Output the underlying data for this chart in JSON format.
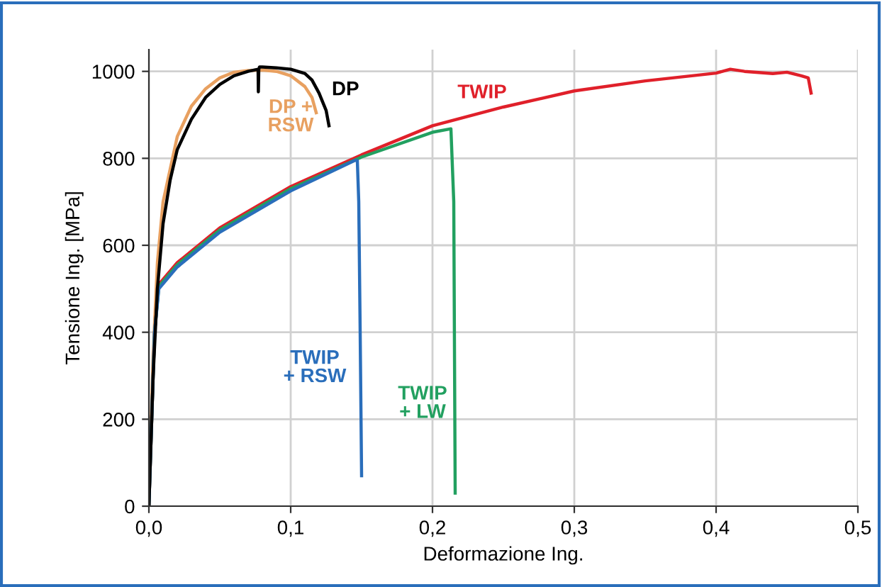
{
  "chart_data": {
    "type": "line",
    "xlabel": "Deformazione Ing.",
    "ylabel": "Tensione Ing. [MPa]",
    "xlim": [
      0,
      0.5
    ],
    "xticks": [
      {
        "value": 0,
        "label": "0,0"
      },
      {
        "value": 0.1,
        "label": "0,1"
      },
      {
        "value": 0.2,
        "label": "0,2"
      },
      {
        "value": 0.3,
        "label": "0,3"
      },
      {
        "value": 0.4,
        "label": "0,4"
      },
      {
        "value": 0.5,
        "label": "0,5"
      }
    ],
    "ylim": [
      0,
      1050
    ],
    "yticks": [
      0,
      200,
      400,
      600,
      800,
      1000
    ],
    "grid": true,
    "marker": "none",
    "line_style": "solid",
    "series": [
      {
        "name": "DP +\nRSW",
        "color": "#e8a060",
        "x": [
          0,
          0.003,
          0.006,
          0.01,
          0.02,
          0.03,
          0.04,
          0.05,
          0.06,
          0.07,
          0.08,
          0.09,
          0.1,
          0.11,
          0.115,
          0.118
        ],
        "values": [
          0,
          350,
          560,
          700,
          850,
          920,
          960,
          985,
          998,
          1002,
          1003,
          1000,
          990,
          965,
          940,
          905
        ]
      },
      {
        "name": "TWIP",
        "color": "#e0202a",
        "x": [
          0,
          0.004,
          0.007,
          0.02,
          0.05,
          0.1,
          0.15,
          0.2,
          0.25,
          0.3,
          0.35,
          0.4,
          0.41,
          0.42,
          0.44,
          0.45,
          0.46,
          0.465,
          0.467
        ],
        "values": [
          0,
          400,
          510,
          560,
          640,
          735,
          808,
          875,
          918,
          955,
          978,
          996,
          1005,
          1000,
          995,
          998,
          990,
          985,
          950
        ]
      },
      {
        "name": "TWIP\n+ LW",
        "color": "#22a060",
        "x": [
          0,
          0.004,
          0.007,
          0.02,
          0.05,
          0.1,
          0.15,
          0.2,
          0.213,
          0.215,
          0.216
        ],
        "values": [
          0,
          400,
          505,
          555,
          635,
          730,
          803,
          860,
          868,
          700,
          30
        ]
      },
      {
        "name": "TWIP\n+ RSW",
        "color": "#2a6ebb",
        "x": [
          0,
          0.004,
          0.007,
          0.02,
          0.05,
          0.1,
          0.145,
          0.147,
          0.148,
          0.149,
          0.15
        ],
        "values": [
          0,
          400,
          500,
          550,
          630,
          725,
          795,
          795,
          700,
          400,
          70
        ]
      },
      {
        "name": "DP",
        "color": "#000000",
        "x": [
          0,
          0.003,
          0.006,
          0.01,
          0.015,
          0.02,
          0.03,
          0.04,
          0.05,
          0.06,
          0.07,
          0.077,
          0.0772,
          0.0775,
          0.078,
          0.08,
          0.09,
          0.1,
          0.11,
          0.115,
          0.12,
          0.125,
          0.127
        ],
        "values": [
          0,
          300,
          500,
          650,
          750,
          820,
          890,
          940,
          970,
          990,
          1000,
          1005,
          953,
          1005,
          1010,
          1010,
          1008,
          1005,
          995,
          980,
          950,
          910,
          875
        ]
      }
    ]
  }
}
